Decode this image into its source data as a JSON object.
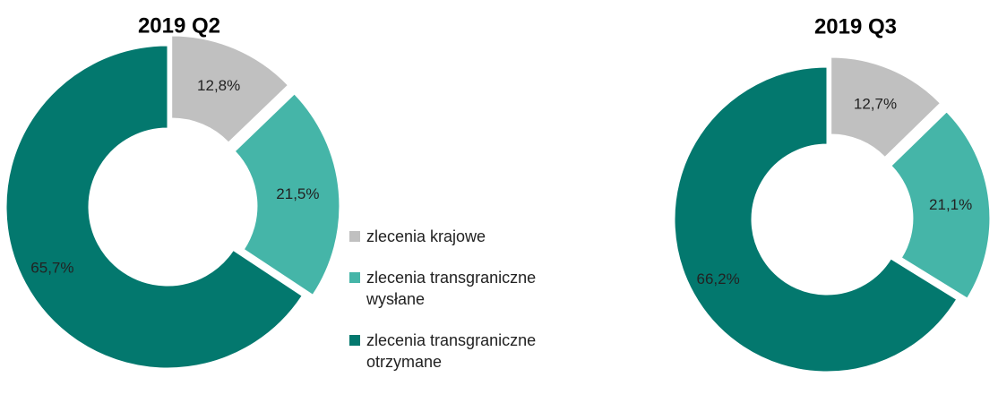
{
  "chart_data": [
    {
      "type": "donut",
      "title": "2019 Q2",
      "categories": [
        "zlecenia krajowe",
        "zlecenia transgraniczne wysłane",
        "zlecenia transgraniczne otrzymane"
      ],
      "values": [
        12.8,
        21.5,
        65.7
      ],
      "value_labels": [
        "12,8%",
        "21,5%",
        "65,7%"
      ],
      "colors": [
        "#c0c0c0",
        "#45b5a8",
        "#03786e"
      ],
      "exploded": [
        true,
        true,
        false
      ]
    },
    {
      "type": "donut",
      "title": "2019 Q3",
      "values": [
        12.7,
        21.1,
        66.2
      ],
      "value_labels": [
        "12,7%",
        "21,1%",
        "66,2%"
      ],
      "colors": [
        "#c0c0c0",
        "#45b5a8",
        "#03786e"
      ],
      "exploded": [
        true,
        true,
        false
      ]
    }
  ]
}
